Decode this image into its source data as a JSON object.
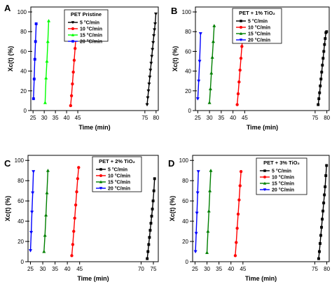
{
  "chart_data": [
    {
      "type": "line",
      "panel": "A",
      "xlabel": "Time (min)",
      "ylabel": "Xc(t) (%)",
      "xlim": [
        24,
        81
      ],
      "ylim": [
        0,
        105
      ],
      "xticks": [
        25,
        30,
        35,
        40,
        45,
        75,
        80
      ],
      "yticks": [
        0,
        20,
        40,
        60,
        80,
        100
      ],
      "legend": {
        "title": "PET Pristine",
        "position": "top-left"
      },
      "series": [
        {
          "name": "5 °C/min",
          "color": "#000000",
          "marker": "triangle-down",
          "x": [
            76.0,
            76.3,
            76.6,
            76.9,
            77.2,
            77.5,
            77.8,
            78.1,
            78.4,
            78.7,
            79.0,
            79.3,
            79.6,
            79.9
          ],
          "y": [
            6,
            13,
            20,
            27,
            34,
            41,
            48,
            55,
            62,
            69,
            76,
            82,
            88,
            98
          ]
        },
        {
          "name": "10 °C/min",
          "color": "#ff0000",
          "marker": "circle",
          "x": [
            41.8,
            42.2,
            42.6,
            43.0,
            43.4,
            43.8,
            44.2,
            44.6
          ],
          "y": [
            5,
            15,
            27,
            39,
            51,
            63,
            75,
            89
          ]
        },
        {
          "name": "15 °C/min",
          "color": "#00ff00",
          "marker": "triangle-up",
          "x": [
            30.4,
            30.8,
            31.2,
            31.6,
            32.0
          ],
          "y": [
            8,
            33,
            50,
            70,
            91
          ]
        },
        {
          "name": "20 °C/min",
          "color": "#0000ff",
          "marker": "square",
          "x": [
            25.2,
            25.5,
            25.8,
            26.1,
            26.4
          ],
          "y": [
            12,
            32,
            52,
            70,
            88
          ]
        }
      ]
    },
    {
      "type": "line",
      "panel": "B",
      "xlabel": "Time (min)",
      "ylabel": "Xc(t) (%)",
      "xlim": [
        24,
        81
      ],
      "ylim": [
        0,
        105
      ],
      "xticks": [
        25,
        30,
        35,
        40,
        45,
        75,
        80
      ],
      "yticks": [
        0,
        20,
        40,
        60,
        80,
        100
      ],
      "legend": {
        "title": "PET + 1% TiO₂",
        "position": "top-left"
      },
      "series": [
        {
          "name": "5 °C/min",
          "color": "#000000",
          "marker": "square",
          "x": [
            76.3,
            76.6,
            76.9,
            77.2,
            77.5,
            77.8,
            78.1,
            78.4,
            78.7,
            79.0,
            79.3,
            79.6,
            79.9
          ],
          "y": [
            6,
            12,
            18,
            25,
            32,
            39,
            46,
            53,
            60,
            67,
            73,
            79,
            80
          ]
        },
        {
          "name": "10 °C/min",
          "color": "#ff0000",
          "marker": "circle",
          "x": [
            41.8,
            42.2,
            42.6,
            43.0,
            43.4,
            43.8,
            44.2,
            44.6
          ],
          "y": [
            6,
            17,
            29,
            41,
            53,
            65,
            77,
            91
          ]
        },
        {
          "name": "15 °C/min",
          "color": "#007f00",
          "marker": "triangle-up",
          "x": [
            30.0,
            30.4,
            30.8,
            31.2,
            31.6,
            32.0
          ],
          "y": [
            8,
            22,
            38,
            54,
            70,
            86
          ]
        },
        {
          "name": "20 °C/min",
          "color": "#0000ff",
          "marker": "triangle-down",
          "x": [
            25.0,
            25.4,
            25.8,
            26.2
          ],
          "y": [
            12,
            30,
            50,
            78
          ]
        }
      ]
    },
    {
      "type": "line",
      "panel": "C",
      "xlabel": "Time (min)",
      "ylabel": "Xc(t) (%)",
      "xlim": [
        24,
        77
      ],
      "ylim": [
        0,
        105
      ],
      "xticks": [
        25,
        30,
        35,
        40,
        45,
        70,
        75
      ],
      "yticks": [
        0,
        20,
        40,
        60,
        80,
        100
      ],
      "legend": {
        "title": "PET + 2% TiO₂",
        "position": "top-left"
      },
      "series": [
        {
          "name": "5 °C/min",
          "color": "#000000",
          "marker": "square",
          "x": [
            72.5,
            72.8,
            73.1,
            73.4,
            73.7,
            74.0,
            74.3,
            74.6,
            74.9,
            75.2,
            75.5
          ],
          "y": [
            3,
            10,
            17,
            24,
            31,
            38,
            45,
            52,
            60,
            70,
            82
          ]
        },
        {
          "name": "10 °C/min",
          "color": "#ff0000",
          "marker": "circle",
          "x": [
            41.8,
            42.2,
            42.6,
            43.0,
            43.4,
            43.8,
            44.2,
            44.6
          ],
          "y": [
            6,
            17,
            30,
            43,
            56,
            69,
            82,
            93
          ]
        },
        {
          "name": "15 °C/min",
          "color": "#007f00",
          "marker": "triangle-up",
          "x": [
            30.5,
            30.9,
            31.3,
            31.7,
            32.1
          ],
          "y": [
            10,
            26,
            46,
            68,
            90
          ]
        },
        {
          "name": "20 °C/min",
          "color": "#0000ff",
          "marker": "triangle-down",
          "x": [
            25.0,
            25.3,
            25.6,
            25.9,
            26.2
          ],
          "y": [
            11,
            29,
            49,
            68,
            89
          ]
        }
      ]
    },
    {
      "type": "line",
      "panel": "D",
      "xlabel": "Time (min)",
      "ylabel": "Xc(t) (%)",
      "xlim": [
        24,
        81
      ],
      "ylim": [
        0,
        105
      ],
      "xticks": [
        25,
        30,
        35,
        40,
        45,
        75,
        80
      ],
      "yticks": [
        0,
        20,
        40,
        60,
        80,
        100
      ],
      "legend": {
        "title": "PET + 3% TiO₂",
        "position": "top-left"
      },
      "series": [
        {
          "name": "5 °C/min",
          "color": "#000000",
          "marker": "square",
          "x": [
            76.6,
            76.9,
            77.2,
            77.5,
            77.8,
            78.1,
            78.4,
            78.7,
            79.0,
            79.3,
            79.6,
            79.9
          ],
          "y": [
            3,
            10,
            18,
            26,
            34,
            42,
            50,
            58,
            66,
            74,
            85,
            95
          ]
        },
        {
          "name": "10 °C/min",
          "color": "#ff0000",
          "marker": "circle",
          "x": [
            41.8,
            42.2,
            42.6,
            43.0,
            43.4,
            43.8,
            44.2
          ],
          "y": [
            6,
            19,
            33,
            47,
            61,
            75,
            89
          ]
        },
        {
          "name": "15 °C/min",
          "color": "#007f00",
          "marker": "triangle-up",
          "x": [
            30.0,
            30.4,
            30.8,
            31.2,
            31.6
          ],
          "y": [
            9,
            30,
            50,
            70,
            90
          ]
        },
        {
          "name": "20 °C/min",
          "color": "#0000ff",
          "marker": "triangle-down",
          "x": [
            25.2,
            25.5,
            25.8,
            26.1,
            26.4
          ],
          "y": [
            10,
            28,
            48,
            68,
            89
          ]
        }
      ]
    }
  ]
}
